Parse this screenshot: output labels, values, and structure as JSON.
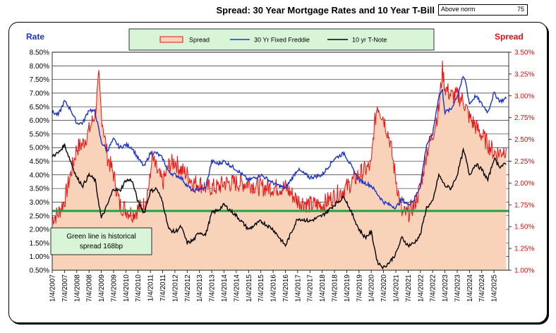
{
  "header": {
    "title": "Spread:  30 Year Mortgage Rates and 10 Year T-Bill",
    "norm_label": "Above norm",
    "norm_value": "75"
  },
  "chart_data": {
    "type": "line",
    "title": "Spread:  30 Year Mortgage Rates and 10 Year T-Bill",
    "left_axis": {
      "label": "Rate",
      "ylim": [
        0.5,
        8.5
      ],
      "step": 0.5,
      "ticks": [
        "0.50%",
        "1.00%",
        "1.50%",
        "2.00%",
        "2.50%",
        "3.00%",
        "3.50%",
        "4.00%",
        "4.50%",
        "5.00%",
        "5.50%",
        "6.00%",
        "6.50%",
        "7.00%",
        "7.50%",
        "8.00%",
        "8.50%"
      ]
    },
    "right_axis": {
      "label": "Spread",
      "ylim": [
        1.0,
        3.5
      ],
      "step": 0.25,
      "ticks": [
        "1.00%",
        "1.25%",
        "1.50%",
        "1.75%",
        "2.00%",
        "2.25%",
        "2.50%",
        "2.75%",
        "3.00%",
        "3.25%",
        "3.50%"
      ]
    },
    "x_ticks": [
      "1/4/2007",
      "7/4/2007",
      "1/4/2008",
      "7/4/2008",
      "1/4/2009",
      "7/4/2009",
      "1/4/2010",
      "7/4/2010",
      "1/4/2011",
      "7/4/2011",
      "1/4/2012",
      "7/4/2012",
      "1/4/2013",
      "7/4/2013",
      "1/4/2014",
      "7/4/2014",
      "1/4/2015",
      "7/4/2015",
      "1/4/2016",
      "7/4/2016",
      "1/4/2017",
      "7/4/2017",
      "1/4/2018",
      "7/4/2018",
      "1/4/2019",
      "7/4/2019",
      "1/4/2020",
      "7/4/2020",
      "1/4/2021",
      "7/4/2021",
      "1/4/2022",
      "7/4/2022",
      "1/4/2023",
      "7/4/2023",
      "1/4/2024",
      "7/4/2024",
      "1/4/2025"
    ],
    "grid": true,
    "legend_position": "top",
    "reference_line": {
      "axis": "right",
      "value": 1.68,
      "color": "#22a040"
    },
    "annotation": [
      "Green line is historical",
      "spread 168bp"
    ],
    "series": [
      {
        "name": "Spread",
        "axis": "right",
        "type": "area",
        "color": "#ee1111",
        "fill": "#f9d3b9",
        "x": [
          2007.0,
          2007.25,
          2007.5,
          2007.75,
          2008.0,
          2008.25,
          2008.5,
          2008.75,
          2008.9,
          2009.0,
          2009.25,
          2009.5,
          2009.75,
          2010.0,
          2010.25,
          2010.5,
          2010.75,
          2011.0,
          2011.05,
          2011.25,
          2011.5,
          2011.75,
          2012.0,
          2012.25,
          2012.5,
          2012.75,
          2013.0,
          2013.25,
          2013.5,
          2013.75,
          2014.0,
          2014.5,
          2015.0,
          2015.5,
          2016.0,
          2016.5,
          2017.0,
          2017.5,
          2018.0,
          2018.5,
          2019.0,
          2019.5,
          2020.0,
          2020.1,
          2020.25,
          2020.5,
          2020.75,
          2021.0,
          2021.25,
          2021.5,
          2021.75,
          2022.0,
          2022.25,
          2022.5,
          2022.75,
          2022.9,
          2023.0,
          2023.25,
          2023.5,
          2023.75,
          2024.0,
          2024.25,
          2024.5,
          2024.75,
          2025.0,
          2025.25,
          2025.5
        ],
        "values": [
          1.6,
          1.65,
          1.8,
          2.1,
          2.4,
          2.45,
          2.6,
          2.8,
          3.2,
          2.8,
          2.3,
          2.1,
          1.75,
          1.7,
          1.65,
          1.7,
          1.75,
          2.05,
          2.3,
          2.15,
          2.0,
          2.2,
          2.25,
          2.15,
          2.1,
          2.0,
          2.0,
          1.95,
          1.95,
          1.95,
          2.0,
          2.0,
          2.0,
          1.95,
          1.95,
          1.95,
          1.8,
          1.75,
          1.75,
          1.85,
          1.95,
          2.1,
          2.2,
          2.6,
          2.9,
          2.75,
          2.5,
          2.05,
          1.65,
          1.65,
          1.75,
          1.95,
          2.35,
          2.55,
          2.85,
          3.3,
          3.1,
          3.0,
          3.0,
          2.95,
          2.75,
          2.65,
          2.55,
          2.45,
          2.35,
          2.35,
          2.4
        ]
      },
      {
        "name": "30 Yr Fixed Freddie",
        "axis": "left",
        "type": "line",
        "color": "#1a33cc",
        "x": [
          2007.0,
          2007.25,
          2007.5,
          2007.75,
          2008.0,
          2008.25,
          2008.5,
          2008.75,
          2009.0,
          2009.25,
          2009.5,
          2009.75,
          2010.0,
          2010.25,
          2010.5,
          2010.75,
          2011.0,
          2011.25,
          2011.5,
          2011.75,
          2012.0,
          2012.25,
          2012.5,
          2012.75,
          2013.0,
          2013.25,
          2013.5,
          2013.75,
          2014.0,
          2014.5,
          2015.0,
          2015.5,
          2016.0,
          2016.5,
          2017.0,
          2017.5,
          2018.0,
          2018.5,
          2018.9,
          2019.25,
          2019.5,
          2019.75,
          2020.0,
          2020.25,
          2020.5,
          2020.75,
          2021.0,
          2021.25,
          2021.5,
          2021.75,
          2022.0,
          2022.25,
          2022.5,
          2022.75,
          2022.9,
          2023.0,
          2023.25,
          2023.5,
          2023.75,
          2023.85,
          2024.0,
          2024.25,
          2024.5,
          2024.75,
          2025.0,
          2025.25,
          2025.5
        ],
        "values": [
          6.3,
          6.2,
          6.7,
          6.4,
          5.9,
          5.9,
          6.4,
          6.3,
          5.2,
          4.9,
          5.3,
          5.0,
          5.1,
          5.0,
          4.6,
          4.3,
          4.8,
          4.8,
          4.6,
          4.1,
          4.0,
          3.9,
          3.6,
          3.4,
          3.5,
          3.5,
          4.5,
          4.4,
          4.5,
          4.2,
          3.8,
          4.0,
          3.7,
          3.5,
          4.2,
          3.9,
          4.0,
          4.6,
          4.8,
          4.2,
          3.8,
          3.7,
          3.6,
          3.3,
          3.0,
          2.9,
          2.8,
          3.1,
          2.9,
          3.1,
          3.6,
          5.1,
          5.5,
          6.9,
          7.1,
          6.3,
          6.4,
          6.9,
          7.6,
          7.4,
          6.6,
          6.9,
          6.6,
          6.3,
          7.0,
          6.7,
          6.8
        ]
      },
      {
        "name": "10 yr T-Note",
        "axis": "left",
        "type": "line",
        "color": "#000000",
        "x": [
          2007.0,
          2007.25,
          2007.5,
          2007.75,
          2008.0,
          2008.25,
          2008.5,
          2008.75,
          2009.0,
          2009.25,
          2009.5,
          2009.75,
          2010.0,
          2010.25,
          2010.5,
          2010.75,
          2011.0,
          2011.25,
          2011.5,
          2011.75,
          2012.0,
          2012.25,
          2012.5,
          2012.75,
          2013.0,
          2013.25,
          2013.5,
          2013.75,
          2014.0,
          2014.5,
          2015.0,
          2015.5,
          2016.0,
          2016.5,
          2017.0,
          2017.5,
          2018.0,
          2018.5,
          2018.9,
          2019.25,
          2019.5,
          2019.75,
          2020.0,
          2020.25,
          2020.5,
          2020.75,
          2021.0,
          2021.25,
          2021.5,
          2021.75,
          2022.0,
          2022.25,
          2022.5,
          2022.75,
          2023.0,
          2023.25,
          2023.5,
          2023.75,
          2023.85,
          2024.0,
          2024.25,
          2024.5,
          2024.75,
          2025.0,
          2025.25,
          2025.5
        ],
        "values": [
          4.7,
          4.8,
          5.1,
          4.5,
          3.9,
          3.6,
          4.0,
          3.8,
          2.4,
          2.9,
          3.5,
          3.4,
          3.8,
          3.8,
          3.0,
          2.6,
          3.4,
          3.5,
          3.0,
          2.0,
          1.9,
          2.1,
          1.5,
          1.6,
          1.9,
          1.8,
          2.6,
          2.7,
          2.9,
          2.5,
          2.0,
          2.3,
          2.0,
          1.4,
          2.4,
          2.3,
          2.5,
          2.9,
          3.2,
          2.5,
          2.0,
          1.7,
          1.9,
          0.8,
          0.6,
          0.8,
          1.1,
          1.7,
          1.4,
          1.5,
          1.8,
          2.8,
          3.0,
          4.0,
          3.6,
          3.5,
          4.0,
          4.9,
          4.6,
          4.0,
          4.4,
          4.2,
          3.8,
          4.6,
          4.3,
          4.4
        ]
      }
    ]
  }
}
